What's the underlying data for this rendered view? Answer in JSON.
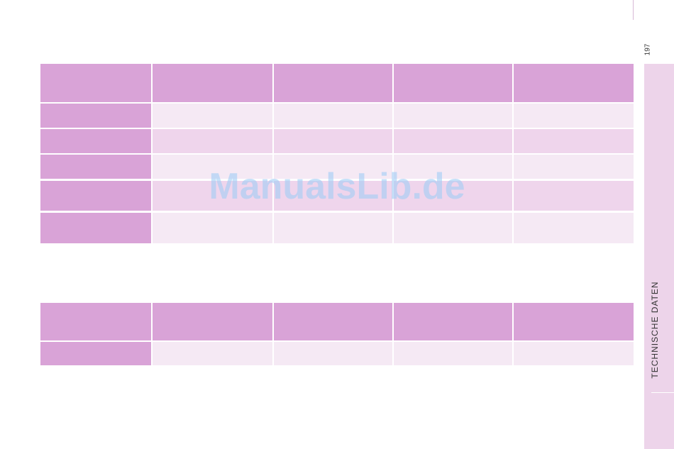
{
  "page_number": "197",
  "side_tab": "TECHNISCHE DATEN",
  "watermark": "ManualsLib.de"
}
